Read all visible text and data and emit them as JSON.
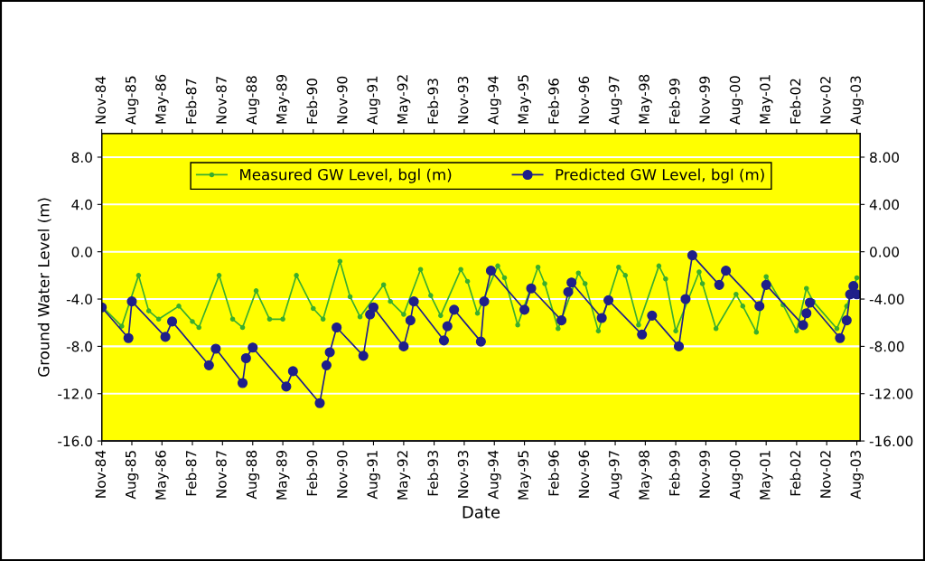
{
  "chart_data": {
    "type": "line",
    "xlabel": "Date",
    "ylabel": "Ground Water Level (m)",
    "xlim": [
      "1984-11",
      "2003-09"
    ],
    "xticks": [
      {
        "value": "1984-11",
        "label": "Nov-84"
      },
      {
        "value": "1985-08",
        "label": "Aug-85"
      },
      {
        "value": "1986-05",
        "label": "May-86"
      },
      {
        "value": "1987-02",
        "label": "Feb-87"
      },
      {
        "value": "1987-11",
        "label": "Nov-87"
      },
      {
        "value": "1988-08",
        "label": "Aug-88"
      },
      {
        "value": "1989-05",
        "label": "May-89"
      },
      {
        "value": "1990-02",
        "label": "Feb-90"
      },
      {
        "value": "1990-11",
        "label": "Nov-90"
      },
      {
        "value": "1991-08",
        "label": "Aug-91"
      },
      {
        "value": "1992-05",
        "label": "May-92"
      },
      {
        "value": "1993-02",
        "label": "Feb-93"
      },
      {
        "value": "1993-11",
        "label": "Nov-93"
      },
      {
        "value": "1994-08",
        "label": "Aug-94"
      },
      {
        "value": "1995-05",
        "label": "May-95"
      },
      {
        "value": "1996-02",
        "label": "Feb-96"
      },
      {
        "value": "1996-11",
        "label": "Nov-96"
      },
      {
        "value": "1997-08",
        "label": "Aug-97"
      },
      {
        "value": "1998-05",
        "label": "May-98"
      },
      {
        "value": "1999-02",
        "label": "Feb-99"
      },
      {
        "value": "1999-11",
        "label": "Nov-99"
      },
      {
        "value": "2000-08",
        "label": "Aug-00"
      },
      {
        "value": "2001-05",
        "label": "May-01"
      },
      {
        "value": "2002-02",
        "label": "Feb-02"
      },
      {
        "value": "2002-11",
        "label": "Nov-02"
      },
      {
        "value": "2003-08",
        "label": "Aug-03"
      }
    ],
    "x2lim": [
      "1984-11",
      "2003-09"
    ],
    "x2ticks": [
      {
        "value": "1984-11",
        "label": "Nov-84"
      },
      {
        "value": "1985-08",
        "label": "Aug-85"
      },
      {
        "value": "1986-05",
        "label": "May-86"
      },
      {
        "value": "1987-02",
        "label": "Feb-87"
      },
      {
        "value": "1987-11",
        "label": "Nov-87"
      },
      {
        "value": "1988-08",
        "label": "Aug-88"
      },
      {
        "value": "1989-05",
        "label": "May-89"
      },
      {
        "value": "1990-02",
        "label": "Feb-90"
      },
      {
        "value": "1990-11",
        "label": "Nov-90"
      },
      {
        "value": "1991-08",
        "label": "Aug-91"
      },
      {
        "value": "1992-05",
        "label": "May-92"
      },
      {
        "value": "1993-02",
        "label": "Feb-93"
      },
      {
        "value": "1993-11",
        "label": "Nov-93"
      },
      {
        "value": "1994-08",
        "label": "Aug-94"
      },
      {
        "value": "1995-05",
        "label": "May-95"
      },
      {
        "value": "1996-02",
        "label": "Feb-96"
      },
      {
        "value": "1996-11",
        "label": "Nov-96"
      },
      {
        "value": "1997-08",
        "label": "Aug-97"
      },
      {
        "value": "1998-05",
        "label": "May-98"
      },
      {
        "value": "1999-02",
        "label": "Feb-99"
      },
      {
        "value": "1999-11",
        "label": "Nov-99"
      },
      {
        "value": "2000-08",
        "label": "Aug-00"
      },
      {
        "value": "2001-05",
        "label": "May-01"
      },
      {
        "value": "2002-02",
        "label": "Feb-02"
      },
      {
        "value": "2002-11",
        "label": "Nov-02"
      },
      {
        "value": "2003-08",
        "label": "Aug-03"
      }
    ],
    "ylim": [
      -16,
      10
    ],
    "yticks": [
      {
        "value": -16,
        "label": "-16.0"
      },
      {
        "value": -12,
        "label": "-12.0"
      },
      {
        "value": -8,
        "label": "-8.0"
      },
      {
        "value": -4,
        "label": "-4.0"
      },
      {
        "value": 0,
        "label": "0.0"
      },
      {
        "value": 4,
        "label": "4.0"
      },
      {
        "value": 8,
        "label": "8.0"
      }
    ],
    "y2lim": [
      -16,
      10
    ],
    "y2ticks": [
      {
        "value": -16,
        "label": "-16.00"
      },
      {
        "value": -12,
        "label": "-12.00"
      },
      {
        "value": -8,
        "label": "-8.00"
      },
      {
        "value": -4,
        "label": "-4.00"
      },
      {
        "value": 0,
        "label": "0.00"
      },
      {
        "value": 4,
        "label": "4.00"
      },
      {
        "value": 8,
        "label": "8.00"
      }
    ],
    "grid": "y",
    "legend": "top",
    "marker": "circle",
    "line_style": "solid",
    "series": [
      {
        "name": "Measured GW Level, bgl (m)",
        "color": "#3aae2e",
        "x": [
          "1984-11",
          "1985-05",
          "1985-10",
          "1986-01",
          "1986-04",
          "1986-10",
          "1987-02",
          "1987-04",
          "1987-10",
          "1988-02",
          "1988-05",
          "1988-09",
          "1989-01",
          "1989-05",
          "1989-09",
          "1990-02",
          "1990-05",
          "1990-10",
          "1991-01",
          "1991-04",
          "1991-11",
          "1992-01",
          "1992-05",
          "1992-10",
          "1993-01",
          "1993-04",
          "1993-10",
          "1993-12",
          "1994-03",
          "1994-09",
          "1994-11",
          "1995-03",
          "1995-09",
          "1995-11",
          "1996-03",
          "1996-09",
          "1996-11",
          "1997-03",
          "1997-09",
          "1997-11",
          "1998-03",
          "1998-09",
          "1998-11",
          "1999-02",
          "1999-09",
          "1999-10",
          "2000-02",
          "2000-08",
          "2000-10",
          "2001-02",
          "2001-05",
          "2001-10",
          "2002-02",
          "2002-05",
          "2002-07",
          "2003-02",
          "2003-05",
          "2003-08"
        ],
        "values": [
          -4.6,
          -6.3,
          -2.0,
          -5.0,
          -5.7,
          -4.6,
          -5.9,
          -6.4,
          -2.0,
          -5.7,
          -6.4,
          -3.3,
          -5.7,
          -5.7,
          -2.0,
          -4.8,
          -5.7,
          -0.8,
          -3.8,
          -5.5,
          -2.8,
          -4.2,
          -5.3,
          -1.5,
          -3.7,
          -5.4,
          -1.5,
          -2.5,
          -5.2,
          -1.2,
          -2.2,
          -6.2,
          -1.3,
          -2.7,
          -6.5,
          -1.8,
          -2.7,
          -6.7,
          -1.3,
          -2.0,
          -6.2,
          -1.2,
          -2.3,
          -6.7,
          -1.7,
          -2.7,
          -6.5,
          -3.6,
          -4.6,
          -6.8,
          -2.1,
          -4.5,
          -6.7,
          -3.1,
          -4.2,
          -6.5,
          -4.6,
          -2.2
        ]
      },
      {
        "name": "Predicted GW Level, bgl (m)",
        "color": "#1f1f8a",
        "x": [
          "1984-11",
          "1985-07",
          "1985-08",
          "1986-06",
          "1986-08",
          "1987-07",
          "1987-09",
          "1988-05",
          "1988-06",
          "1988-08",
          "1989-06",
          "1989-08",
          "1990-04",
          "1990-06",
          "1990-07",
          "1990-09",
          "1991-05",
          "1991-07",
          "1991-08",
          "1992-05",
          "1992-07",
          "1992-08",
          "1993-05",
          "1993-06",
          "1993-08",
          "1994-04",
          "1994-05",
          "1994-07",
          "1995-05",
          "1995-07",
          "1996-04",
          "1996-06",
          "1996-07",
          "1997-04",
          "1997-06",
          "1998-04",
          "1998-07",
          "1999-03",
          "1999-05",
          "1999-07",
          "2000-03",
          "2000-05",
          "2001-03",
          "2001-05",
          "2002-04",
          "2002-05",
          "2002-06",
          "2003-03",
          "2003-05",
          "2003-06",
          "2003-07",
          "2003-08"
        ],
        "values": [
          -4.7,
          -7.3,
          -4.2,
          -7.2,
          -5.9,
          -9.6,
          -8.2,
          -11.1,
          -9.0,
          -8.1,
          -11.4,
          -10.1,
          -12.8,
          -9.6,
          -8.5,
          -6.4,
          -8.8,
          -5.3,
          -4.7,
          -8.0,
          -5.8,
          -4.2,
          -7.5,
          -6.3,
          -4.9,
          -7.6,
          -4.2,
          -1.6,
          -4.9,
          -3.1,
          -5.8,
          -3.4,
          -2.6,
          -5.6,
          -4.1,
          -7.0,
          -5.4,
          -8.0,
          -4.0,
          -0.3,
          -2.8,
          -1.6,
          -4.6,
          -2.8,
          -6.2,
          -5.2,
          -4.3,
          -7.3,
          -5.8,
          -3.6,
          -2.9,
          -3.6
        ]
      }
    ]
  }
}
